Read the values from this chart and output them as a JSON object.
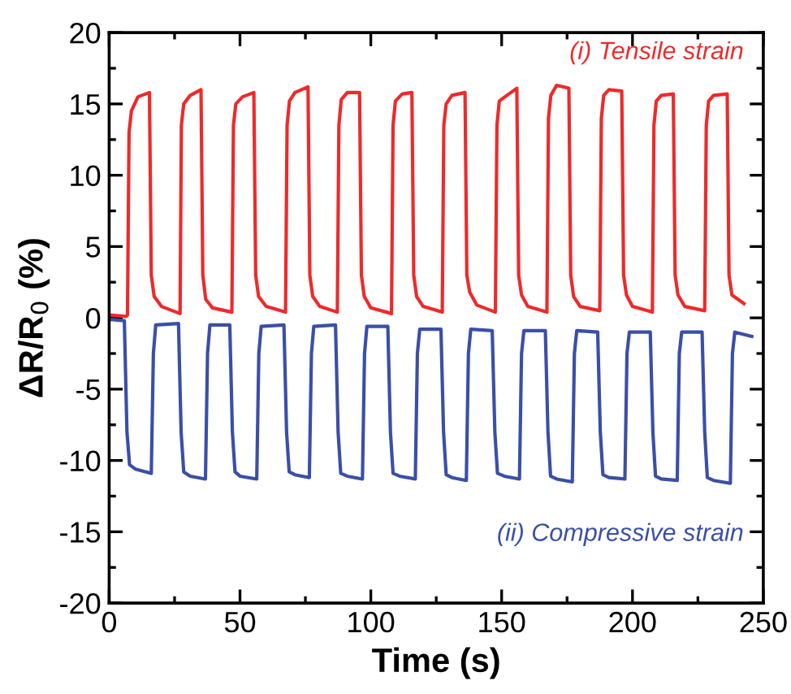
{
  "chart_data": {
    "type": "line",
    "xlabel": "Time (s)",
    "ylabel": "ΔR/R$_{0}$ (%)",
    "xlim": [
      0,
      250
    ],
    "xticks": [
      0,
      50,
      100,
      150,
      200,
      250
    ],
    "ylim": [
      -20,
      20
    ],
    "yticks": [
      -20,
      -15,
      -10,
      -5,
      0,
      5,
      10,
      15,
      20
    ],
    "grid": false,
    "legend": false,
    "marker": "none",
    "line_style": "solid",
    "series": [
      {
        "name": "(i) Tensile strain",
        "color": "#ee2a2a",
        "x": [
          0,
          6.5,
          7.0,
          7.6,
          8.5,
          11,
          15.4,
          16.1,
          17.2,
          20,
          27.1,
          27.6,
          28.5,
          31,
          35.1,
          35.8,
          36.9,
          39.5,
          46.9,
          47.5,
          48.4,
          51,
          55.3,
          56.0,
          57.1,
          60,
          67.4,
          68.0,
          68.9,
          71,
          76.0,
          76.7,
          77.8,
          80.5,
          87.2,
          87.8,
          88.7,
          91,
          95.7,
          96.4,
          97.5,
          100,
          107.9,
          108.5,
          109.4,
          112,
          115.7,
          116.4,
          117.5,
          120,
          127.3,
          127.9,
          128.8,
          131,
          136.0,
          136.7,
          137.8,
          140.5,
          147.6,
          148.2,
          149.1,
          152,
          155.8,
          156.5,
          157.6,
          160,
          167.3,
          167.9,
          168.8,
          171,
          175.7,
          176.4,
          177.5,
          180,
          187.5,
          188.1,
          189,
          191,
          195.9,
          196.6,
          197.7,
          200,
          207.6,
          208.2,
          209.1,
          211,
          215.6,
          216.3,
          217.4,
          220,
          227.6,
          228.2,
          229.1,
          231,
          236.2,
          236.9,
          238,
          242.6
        ],
        "values": [
          0.2,
          0.1,
          0.2,
          13,
          14.5,
          15.5,
          15.8,
          3,
          1.5,
          0.8,
          0.3,
          13.5,
          15,
          15.6,
          16.0,
          3,
          1.3,
          0.7,
          0.4,
          13.5,
          15,
          15.5,
          15.8,
          3,
          1.5,
          0.8,
          0.4,
          13.5,
          15.2,
          15.8,
          16.2,
          3,
          1.5,
          0.8,
          0.4,
          13.5,
          15.3,
          15.8,
          15.8,
          3,
          1.5,
          0.7,
          0.3,
          13.5,
          15.2,
          15.7,
          15.8,
          3,
          1.5,
          0.8,
          0.4,
          13.5,
          15,
          15.6,
          15.8,
          3,
          1.8,
          0.9,
          0.4,
          13.5,
          15.2,
          15.6,
          16.1,
          3,
          1.6,
          0.8,
          0.4,
          14,
          15.6,
          16.3,
          16.1,
          3,
          1.5,
          0.8,
          0.5,
          14,
          15.6,
          16,
          15.9,
          3,
          1.6,
          0.8,
          0.4,
          13.5,
          15.2,
          15.6,
          15.7,
          3,
          1.6,
          0.8,
          0.5,
          13.5,
          15.2,
          15.6,
          15.7,
          3,
          1.6,
          1.0
        ]
      },
      {
        "name": "(ii) Compressive strain",
        "color": "#3a4fa8",
        "x": [
          0,
          5.8,
          6.8,
          7.8,
          10,
          16.1,
          16.9,
          17.8,
          26.5,
          27.5,
          28.5,
          31,
          36.8,
          37.6,
          38.5,
          46.1,
          47.1,
          48.1,
          50,
          56.4,
          57.2,
          58.1,
          66.8,
          67.8,
          68.8,
          71,
          76.5,
          77.3,
          78.2,
          86.5,
          87.5,
          88.5,
          91,
          96.8,
          97.6,
          98.5,
          106.5,
          107.5,
          108.5,
          111,
          117.0,
          117.8,
          118.7,
          126.8,
          127.8,
          128.8,
          131,
          136.5,
          137.3,
          138.2,
          146.4,
          147.4,
          148.4,
          151,
          156.8,
          157.6,
          158.5,
          166.7,
          167.7,
          168.7,
          171,
          177.0,
          177.8,
          178.7,
          186.7,
          187.7,
          188.7,
          191,
          197.1,
          197.9,
          198.8,
          206.8,
          207.8,
          208.8,
          211,
          217.1,
          217.9,
          218.8,
          226.6,
          227.6,
          228.6,
          231,
          237.4,
          238.2,
          239.1,
          245.6
        ],
        "values": [
          -0.1,
          -0.2,
          -8,
          -10.3,
          -10.6,
          -10.9,
          -2.5,
          -0.5,
          -0.4,
          -8,
          -10.8,
          -11.1,
          -11.3,
          -2.5,
          -0.5,
          -0.5,
          -8,
          -10.8,
          -11.1,
          -11.3,
          -2.5,
          -0.6,
          -0.5,
          -8,
          -10.8,
          -11.0,
          -11.2,
          -2.5,
          -0.6,
          -0.5,
          -8,
          -10.9,
          -11.1,
          -11.3,
          -2.5,
          -0.6,
          -0.6,
          -8,
          -10.9,
          -11.1,
          -11.3,
          -2.5,
          -0.8,
          -0.8,
          -8,
          -11,
          -11.2,
          -11.4,
          -2.5,
          -0.8,
          -0.9,
          -8,
          -10.9,
          -11.1,
          -11.3,
          -2.5,
          -0.9,
          -0.9,
          -8,
          -11.1,
          -11.3,
          -11.5,
          -2.5,
          -0.9,
          -1.0,
          -8,
          -11,
          -11.2,
          -11.3,
          -2.5,
          -1.0,
          -1.0,
          -8,
          -11.1,
          -11.3,
          -11.4,
          -2.5,
          -1.0,
          -1.0,
          -8,
          -11.2,
          -11.4,
          -11.6,
          -2.5,
          -1.0,
          -1.3
        ]
      }
    ]
  }
}
